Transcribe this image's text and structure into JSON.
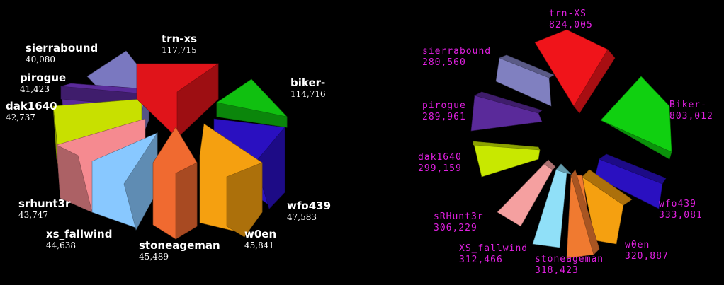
{
  "background": "#000000",
  "chart_data": [
    {
      "type": "pie",
      "style": "exploded-3d",
      "slices": [
        {
          "name": "trn-xs",
          "value": "117,715",
          "color": "#e0141a"
        },
        {
          "name": "biker-",
          "value": "114,716",
          "color": "#10c010"
        },
        {
          "name": "wfo439",
          "value": "47,583",
          "color": "#2a10c0"
        },
        {
          "name": "w0en",
          "value": "45,841",
          "color": "#f5a010"
        },
        {
          "name": "stoneageman",
          "value": "45,489",
          "color": "#f06a30"
        },
        {
          "name": "xs_fallwind",
          "value": "44,638",
          "color": "#88c8ff"
        },
        {
          "name": "srhunt3r",
          "value": "43,747",
          "color": "#f58a90"
        },
        {
          "name": "dak1640",
          "value": "42,737",
          "color": "#c8e000"
        },
        {
          "name": "pirogue",
          "value": "41,423",
          "color": "#5a2a9a"
        },
        {
          "name": "sierrabound",
          "value": "40,080",
          "color": "#7a78c0"
        }
      ]
    },
    {
      "type": "pie",
      "style": "exploded-3d",
      "slices": [
        {
          "name": "trn-XS",
          "value": "824,005",
          "color": "#f0141a"
        },
        {
          "name": "Biker-",
          "value": "803,012",
          "color": "#10d010"
        },
        {
          "name": "wfo439",
          "value": "333,081",
          "color": "#2a10c0"
        },
        {
          "name": "w0en",
          "value": "320,887",
          "color": "#f5a010"
        },
        {
          "name": "stoneageman",
          "value": "318,423",
          "color": "#f07a30"
        },
        {
          "name": "XS_fallwind",
          "value": "312,466",
          "color": "#90e0f8"
        },
        {
          "name": "sRHunt3r",
          "value": "306,229",
          "color": "#f5a0a0"
        },
        {
          "name": "dak1640",
          "value": "299,159",
          "color": "#c8e800"
        },
        {
          "name": "pirogue",
          "value": "289,961",
          "color": "#5a2a9a"
        },
        {
          "name": "sierrabound",
          "value": "280,560",
          "color": "#8080c0"
        }
      ]
    }
  ]
}
